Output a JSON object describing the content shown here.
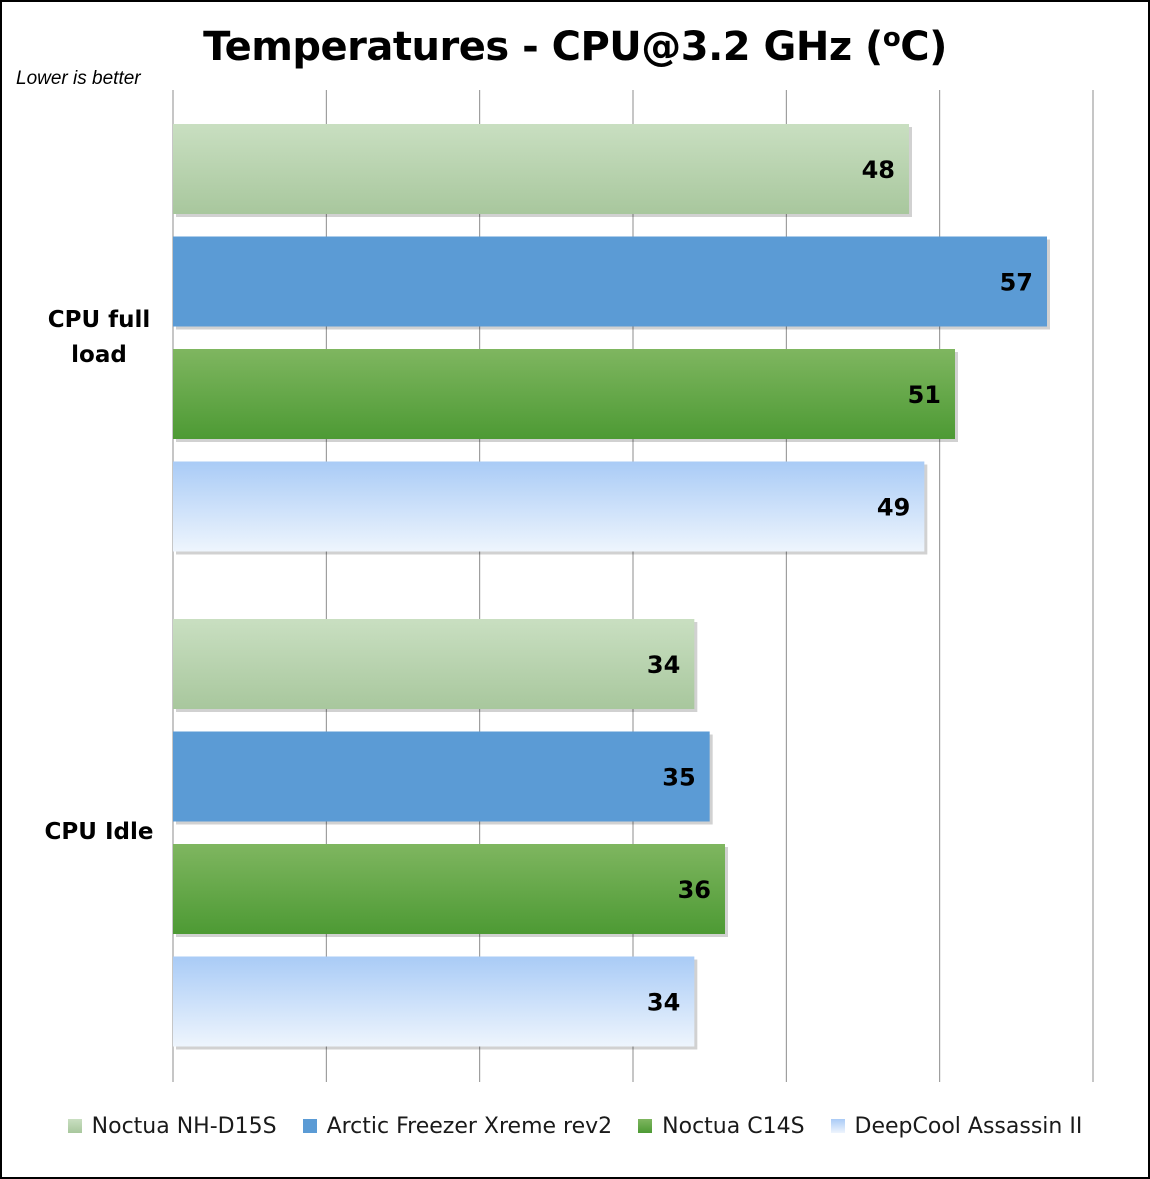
{
  "chart_data": {
    "type": "bar",
    "orientation": "horizontal",
    "title": "Temperatures - CPU@3.2 GHz (",
    "title_sup": "o",
    "title_end": "C)",
    "subtitle": "Lower is better",
    "xlim": [
      0,
      60
    ],
    "x_gridlines": [
      0,
      10,
      20,
      30,
      40,
      50,
      60
    ],
    "grid": true,
    "legend_position": "bottom",
    "categories": [
      "CPU full load",
      "CPU Idle"
    ],
    "series": [
      {
        "name": "Noctua NH-D15S",
        "values": [
          48,
          34
        ],
        "color_top": "#c9dfc1",
        "color_bottom": "#a8c79d"
      },
      {
        "name": "Arctic Freezer Xreme rev2",
        "values": [
          57,
          35
        ],
        "color_top": "#5b9bd5",
        "color_bottom": "#5b9bd5"
      },
      {
        "name": "Noctua C14S",
        "values": [
          51,
          36
        ],
        "color_top": "#7fb660",
        "color_bottom": "#4d9a34"
      },
      {
        "name": "DeepCool Assassin II",
        "values": [
          49,
          34
        ],
        "color_top": "#a9cbf6",
        "color_bottom": "#eef5fd"
      }
    ]
  }
}
